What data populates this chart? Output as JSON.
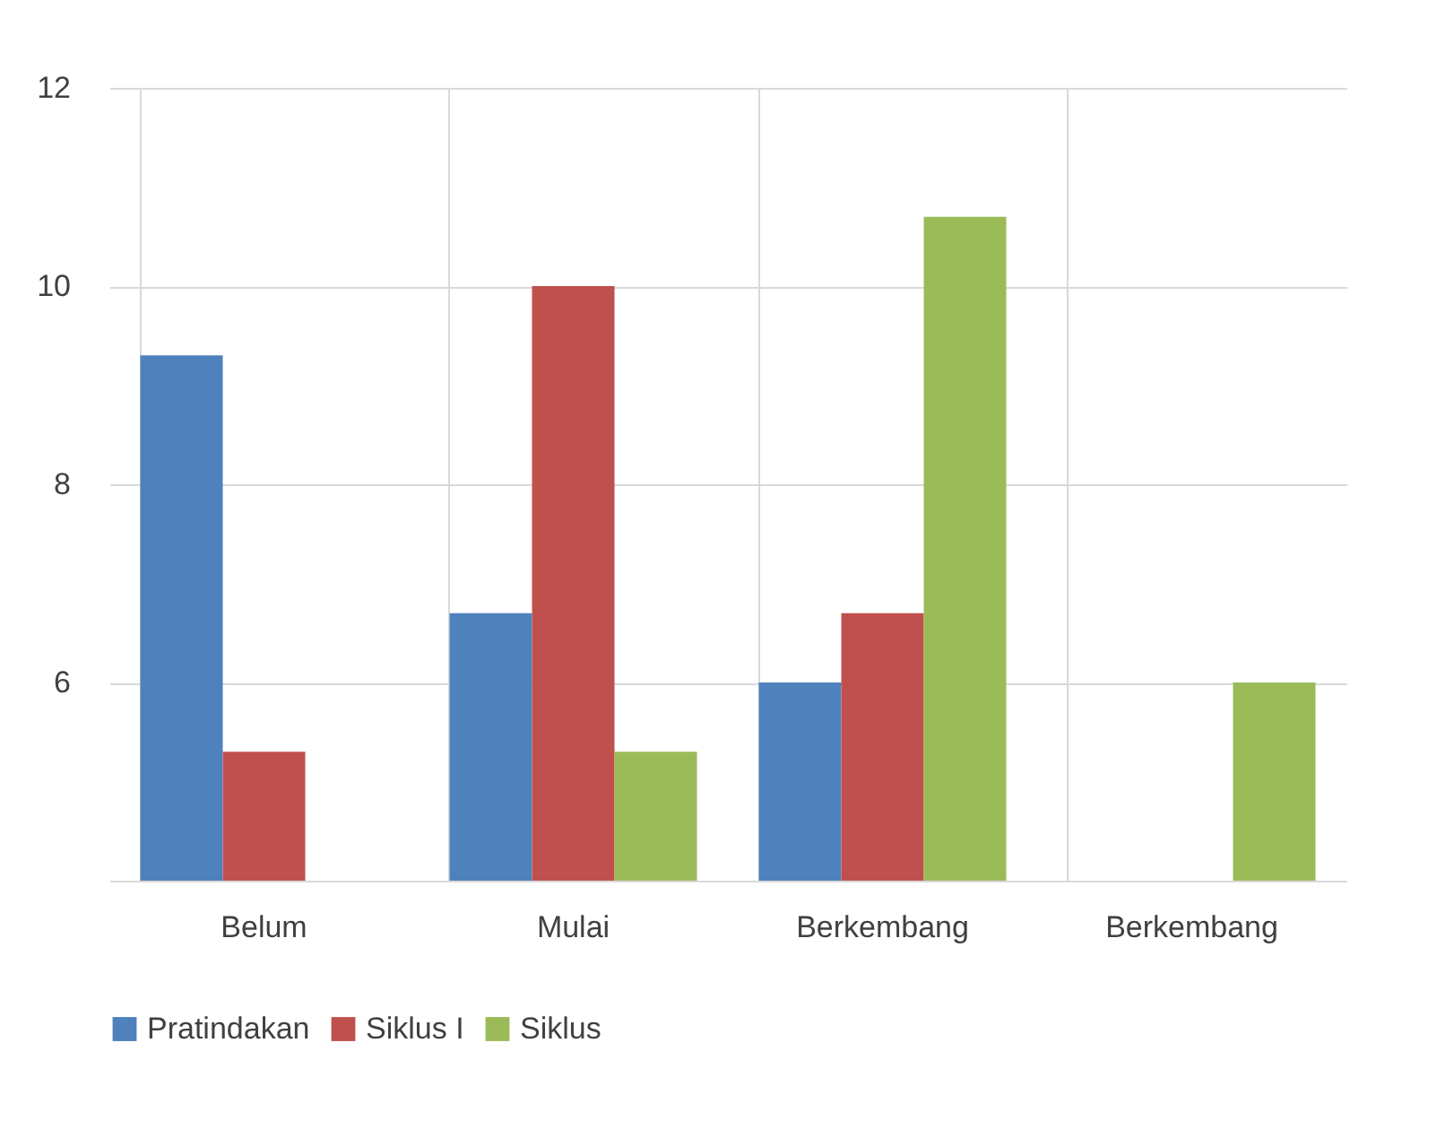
{
  "chart_data": {
    "type": "bar",
    "categories": [
      "Belum",
      "Mulai",
      "Berkembang",
      "Berkembang"
    ],
    "series": [
      {
        "name": "Pratindakan",
        "color": "#4f81bd",
        "values": [
          9.3,
          6.7,
          6,
          null
        ]
      },
      {
        "name": "Siklus I",
        "color": "#c0504d",
        "values": [
          5.3,
          10,
          6.7,
          null
        ]
      },
      {
        "name": "Siklus",
        "color": "#9bbb59",
        "values": [
          null,
          5.3,
          10.7,
          6
        ]
      }
    ],
    "ylim": [
      4,
      12
    ],
    "yticks": [
      6,
      8,
      10,
      12
    ],
    "grid": true,
    "legend": "bottom"
  }
}
